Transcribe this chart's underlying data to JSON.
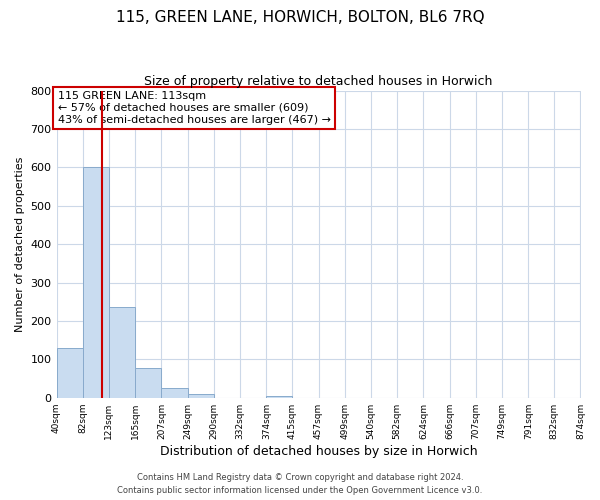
{
  "title": "115, GREEN LANE, HORWICH, BOLTON, BL6 7RQ",
  "subtitle": "Size of property relative to detached houses in Horwich",
  "xlabel": "Distribution of detached houses by size in Horwich",
  "ylabel": "Number of detached properties",
  "bar_edges": [
    40,
    82,
    123,
    165,
    207,
    249,
    290,
    332,
    374,
    415,
    457,
    499,
    540,
    582,
    624,
    666,
    707,
    749,
    791,
    832,
    874
  ],
  "bar_heights": [
    130,
    600,
    235,
    78,
    25,
    10,
    0,
    0,
    5,
    0,
    0,
    0,
    0,
    0,
    0,
    0,
    0,
    0,
    0,
    0
  ],
  "bar_color": "#c9dcf0",
  "bar_edge_color": "#88aacc",
  "property_value": 113,
  "vline_color": "#cc0000",
  "ylim": [
    0,
    800
  ],
  "yticks": [
    0,
    100,
    200,
    300,
    400,
    500,
    600,
    700,
    800
  ],
  "annotation_text": "115 GREEN LANE: 113sqm\n← 57% of detached houses are smaller (609)\n43% of semi-detached houses are larger (467) →",
  "annotation_box_color": "#ffffff",
  "annotation_box_edge": "#cc0000",
  "footer_line1": "Contains HM Land Registry data © Crown copyright and database right 2024.",
  "footer_line2": "Contains public sector information licensed under the Open Government Licence v3.0.",
  "bg_color": "#ffffff",
  "plot_bg_color": "#ffffff",
  "grid_color": "#ccd8e8",
  "tick_labels": [
    "40sqm",
    "82sqm",
    "123sqm",
    "165sqm",
    "207sqm",
    "249sqm",
    "290sqm",
    "332sqm",
    "374sqm",
    "415sqm",
    "457sqm",
    "499sqm",
    "540sqm",
    "582sqm",
    "624sqm",
    "666sqm",
    "707sqm",
    "749sqm",
    "791sqm",
    "832sqm",
    "874sqm"
  ]
}
